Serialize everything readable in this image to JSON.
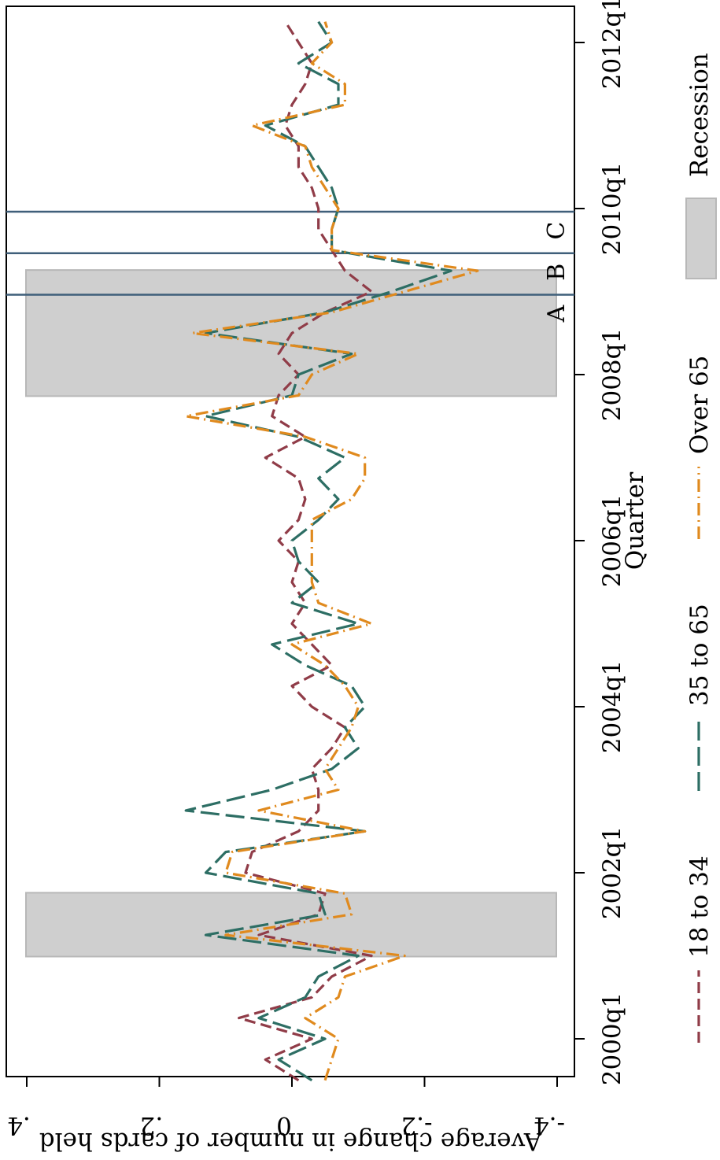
{
  "chart_data": {
    "type": "line",
    "orientation": "rotated-90-clockwise",
    "xlabel": "Quarter",
    "ylabel": "Average change in number of cards held",
    "xlim": [
      "1999q2",
      "2012q3"
    ],
    "ylim": [
      -0.4,
      0.4
    ],
    "x_ticks": [
      {
        "label": "2000q1",
        "quarter": "2000q1"
      },
      {
        "label": "2002q1",
        "quarter": "2002q1"
      },
      {
        "label": "2004q1",
        "quarter": "2004q1"
      },
      {
        "label": "2006q1",
        "quarter": "2006q1"
      },
      {
        "label": "2008q1",
        "quarter": "2008q1"
      },
      {
        "label": "2010q1",
        "quarter": "2010q1"
      },
      {
        "label": "2012q1",
        "quarter": "2012q1"
      }
    ],
    "y_ticks": [
      {
        "label": "-.4",
        "value": -0.4
      },
      {
        "label": "-.2",
        "value": -0.2
      },
      {
        "label": "0",
        "value": 0
      },
      {
        "label": ".2",
        "value": 0.2
      },
      {
        "label": ".4",
        "value": 0.4
      }
    ],
    "recessions": [
      {
        "start": "2001q1",
        "end": "2001q4"
      },
      {
        "start": "2007q4",
        "end": "2009q2"
      }
    ],
    "event_lines": [
      {
        "label": "A",
        "quarter": "2009q1"
      },
      {
        "label": "B",
        "quarter": "2009q3"
      },
      {
        "label": "C",
        "quarter": "2010q1"
      }
    ],
    "x": [
      "1999q3",
      "1999q4",
      "2000q1",
      "2000q2",
      "2000q3",
      "2000q4",
      "2001q1",
      "2001q2",
      "2001q3",
      "2001q4",
      "2002q1",
      "2002q2",
      "2002q3",
      "2002q4",
      "2003q1",
      "2003q2",
      "2003q3",
      "2003q4",
      "2004q1",
      "2004q2",
      "2004q3",
      "2004q4",
      "2005q1",
      "2005q2",
      "2005q3",
      "2005q4",
      "2006q1",
      "2006q2",
      "2006q3",
      "2006q4",
      "2007q1",
      "2007q2",
      "2007q3",
      "2007q4",
      "2008q1",
      "2008q2",
      "2008q3",
      "2008q4",
      "2009q1",
      "2009q2",
      "2009q3",
      "2009q4",
      "2010q1",
      "2010q2",
      "2010q3",
      "2010q4",
      "2011q1",
      "2011q2",
      "2011q3",
      "2011q4",
      "2012q1",
      "2012q2"
    ],
    "series": [
      {
        "name": "18 to 34",
        "color": "#903c48",
        "values": [
          -0.01,
          0.04,
          -0.03,
          0.08,
          -0.03,
          -0.06,
          -0.12,
          0.05,
          -0.04,
          -0.05,
          0.07,
          0.06,
          -0.01,
          -0.04,
          -0.04,
          -0.03,
          -0.06,
          -0.08,
          -0.03,
          0.0,
          -0.06,
          -0.03,
          0.0,
          -0.02,
          0.0,
          -0.01,
          0.02,
          -0.01,
          -0.02,
          -0.01,
          0.04,
          -0.02,
          0.03,
          0.02,
          -0.01,
          0.02,
          0.0,
          -0.05,
          -0.12,
          -0.08,
          -0.06,
          -0.04,
          -0.04,
          -0.03,
          -0.01,
          -0.01,
          0.01,
          0.0,
          -0.02,
          -0.03,
          -0.01,
          0.01
        ]
      },
      {
        "name": "35 to 65",
        "color": "#2d6e64",
        "values": [
          -0.03,
          0.02,
          -0.05,
          0.05,
          -0.02,
          -0.04,
          -0.1,
          0.13,
          -0.05,
          -0.04,
          0.13,
          0.1,
          -0.11,
          0.16,
          0.03,
          -0.06,
          -0.1,
          -0.08,
          -0.11,
          -0.09,
          -0.02,
          0.03,
          -0.1,
          0.0,
          -0.04,
          -0.01,
          0.0,
          -0.04,
          -0.07,
          -0.04,
          -0.08,
          -0.01,
          0.13,
          0.0,
          -0.01,
          -0.09,
          0.13,
          -0.05,
          -0.15,
          -0.24,
          -0.06,
          -0.06,
          -0.07,
          -0.06,
          -0.04,
          -0.02,
          0.04,
          -0.07,
          -0.07,
          -0.01,
          -0.06,
          -0.04
        ]
      },
      {
        "name": "Over 65",
        "color": "#e08a1e",
        "values": [
          -0.05,
          -0.06,
          -0.07,
          -0.02,
          -0.07,
          -0.08,
          -0.17,
          0.1,
          -0.09,
          -0.08,
          0.1,
          0.09,
          -0.11,
          0.05,
          -0.07,
          -0.05,
          -0.07,
          -0.09,
          -0.1,
          -0.08,
          -0.05,
          0.0,
          -0.12,
          -0.04,
          -0.03,
          -0.03,
          -0.03,
          -0.03,
          -0.09,
          -0.11,
          -0.11,
          -0.02,
          0.16,
          -0.01,
          -0.03,
          -0.1,
          0.15,
          -0.06,
          -0.17,
          -0.28,
          -0.06,
          -0.06,
          -0.07,
          -0.05,
          -0.03,
          -0.02,
          0.06,
          -0.08,
          -0.08,
          -0.03,
          -0.06,
          -0.05
        ]
      }
    ],
    "legend": {
      "position": "bottom",
      "items": [
        "18 to 34",
        "35 to 65",
        "Over 65",
        "Recession"
      ]
    },
    "colors": {
      "recession_fill": "#cfcfcf",
      "recession_edge": "#b8b8b8",
      "event_line": "#3f5f7a"
    }
  }
}
